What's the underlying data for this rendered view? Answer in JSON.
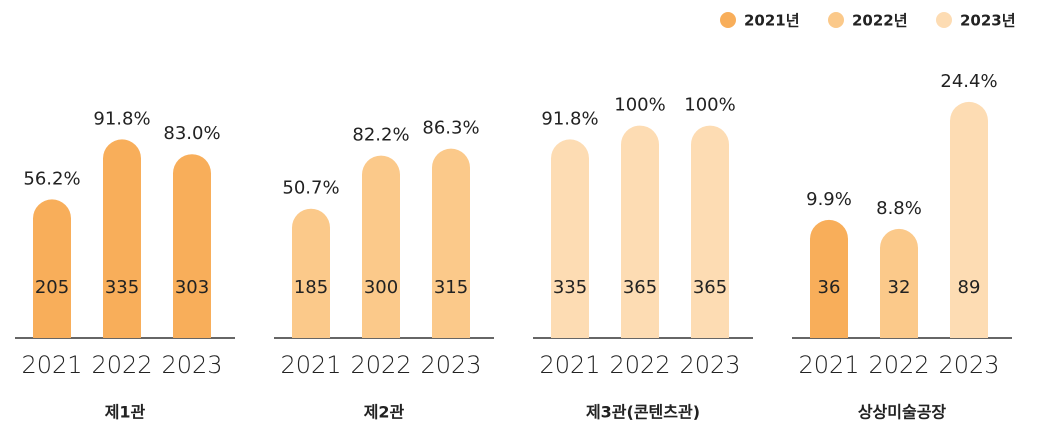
{
  "legend": [
    {
      "name": "2021년",
      "color": "#f8ae5a"
    },
    {
      "name": "2022년",
      "color": "#fbc98a"
    },
    {
      "name": "2023년",
      "color": "#fddcb3"
    }
  ],
  "chart_data": [
    {
      "type": "bar",
      "title": "제1관",
      "categories": [
        "2021",
        "2022",
        "2023"
      ],
      "values": [
        56.2,
        91.8,
        83.0
      ],
      "value_labels": [
        "56.2%",
        "91.8%",
        "83.0%"
      ],
      "counts": [
        205,
        335,
        303
      ],
      "colors": [
        "#f8ae5a",
        "#f8ae5a",
        "#f8ae5a"
      ],
      "ylim": [
        -26,
        130
      ]
    },
    {
      "type": "bar",
      "title": "제2관",
      "categories": [
        "2021",
        "2022",
        "2023"
      ],
      "values": [
        50.7,
        82.2,
        86.3
      ],
      "value_labels": [
        "50.7%",
        "82.2%",
        "86.3%"
      ],
      "counts": [
        185,
        300,
        315
      ],
      "colors": [
        "#fbc98a",
        "#fbc98a",
        "#fbc98a"
      ],
      "ylim": [
        -26,
        130
      ]
    },
    {
      "type": "bar",
      "title": "제3관(콘텐츠관)",
      "categories": [
        "2021",
        "2022",
        "2023"
      ],
      "values": [
        91.8,
        100,
        100
      ],
      "value_labels": [
        "91.8%",
        "100%",
        "100%"
      ],
      "counts": [
        335,
        365,
        365
      ],
      "colors": [
        "#fddcb3",
        "#fddcb3",
        "#fddcb3"
      ],
      "ylim": [
        -26,
        130
      ]
    },
    {
      "type": "bar",
      "title": "상상미술공장",
      "categories": [
        "2021",
        "2022",
        "2023"
      ],
      "values": [
        9.9,
        8.8,
        24.4
      ],
      "value_labels": [
        "9.9%",
        "8.8%",
        "24.4%"
      ],
      "counts": [
        36,
        32,
        89
      ],
      "colors": [
        "#f8ae5a",
        "#fbc98a",
        "#fddcb3"
      ],
      "ylim": [
        -4.6,
        27.7
      ]
    }
  ]
}
